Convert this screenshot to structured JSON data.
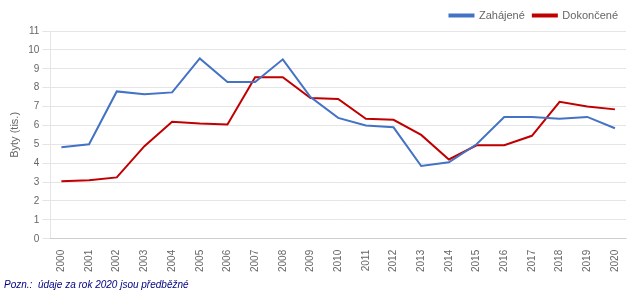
{
  "chart_data": {
    "type": "line",
    "ylabel": "Byty (tis.)",
    "x": [
      2000,
      2001,
      2002,
      2003,
      2004,
      2005,
      2006,
      2007,
      2008,
      2009,
      2010,
      2011,
      2012,
      2013,
      2014,
      2015,
      2016,
      2017,
      2018,
      2019,
      2020
    ],
    "series": [
      {
        "name": "Zahájené",
        "color": "#4472C4",
        "values": [
          4.85,
          5.0,
          7.8,
          7.65,
          7.75,
          9.55,
          8.3,
          8.3,
          9.5,
          7.5,
          6.4,
          6.0,
          5.9,
          3.85,
          4.05,
          5.0,
          6.45,
          6.45,
          6.35,
          6.45,
          5.85
        ]
      },
      {
        "name": "Dokončené",
        "color": "#C00000",
        "values": [
          3.05,
          3.1,
          3.25,
          4.9,
          6.2,
          6.1,
          6.05,
          8.55,
          8.55,
          7.45,
          7.4,
          6.35,
          6.3,
          5.5,
          4.2,
          4.95,
          4.95,
          5.45,
          7.25,
          7.0,
          6.85
        ]
      }
    ],
    "xlim": [
      1999.6,
      2020.4
    ],
    "xticks": [
      2000,
      2001,
      2002,
      2003,
      2004,
      2005,
      2006,
      2007,
      2008,
      2009,
      2010,
      2011,
      2012,
      2013,
      2014,
      2015,
      2016,
      2017,
      2018,
      2019,
      2020
    ],
    "ylim": [
      0,
      11
    ],
    "yticks": [
      0,
      1,
      2,
      3,
      4,
      5,
      6,
      7,
      8,
      9,
      10,
      11
    ],
    "grid": true,
    "legend": "upper right",
    "footnote": "Pozn.:  údaje za rok 2020 jsou předběžné"
  }
}
